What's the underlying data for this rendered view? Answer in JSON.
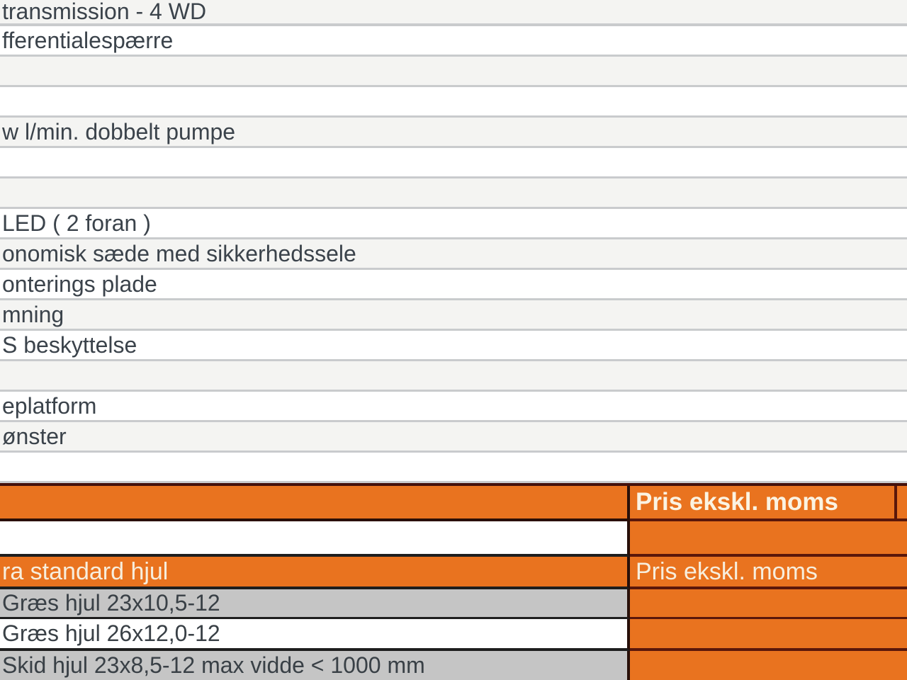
{
  "upper_table": {
    "rows": [
      "transmission - 4 WD",
      "fferentialespærre",
      "",
      "",
      "w l/min. dobbelt pumpe",
      "",
      "",
      "LED ( 2 foran )",
      "onomisk sæde med sikkerhedssele",
      "onterings plade",
      "mning",
      "S beskyttelse",
      "",
      "eplatform",
      "ønster",
      ""
    ]
  },
  "price_table": {
    "header_price_label": "Pris ekskl. moms",
    "header_left_label": "",
    "spacer_left_label": "",
    "spacer_price": "",
    "section_label": "ra standard hjul",
    "section_price_label": "Pris ekskl. moms",
    "options": [
      {
        "label": "Græs hjul 23x10,5-12",
        "price": ""
      },
      {
        "label": "Græs hjul 26x12,0-12",
        "price": ""
      },
      {
        "label": "Skid hjul 23x8,5-12 max vidde < 1000 mm",
        "price": ""
      }
    ]
  },
  "colors": {
    "accent_orange": "#e9731f",
    "stripe_gray": "#f4f4f2",
    "option_row_gray": "#c5c5c5",
    "row_separator": "#c9cbcd",
    "dark_border": "#5a170a",
    "header_text": "#fbf3e2",
    "body_text": "#3b434b"
  }
}
